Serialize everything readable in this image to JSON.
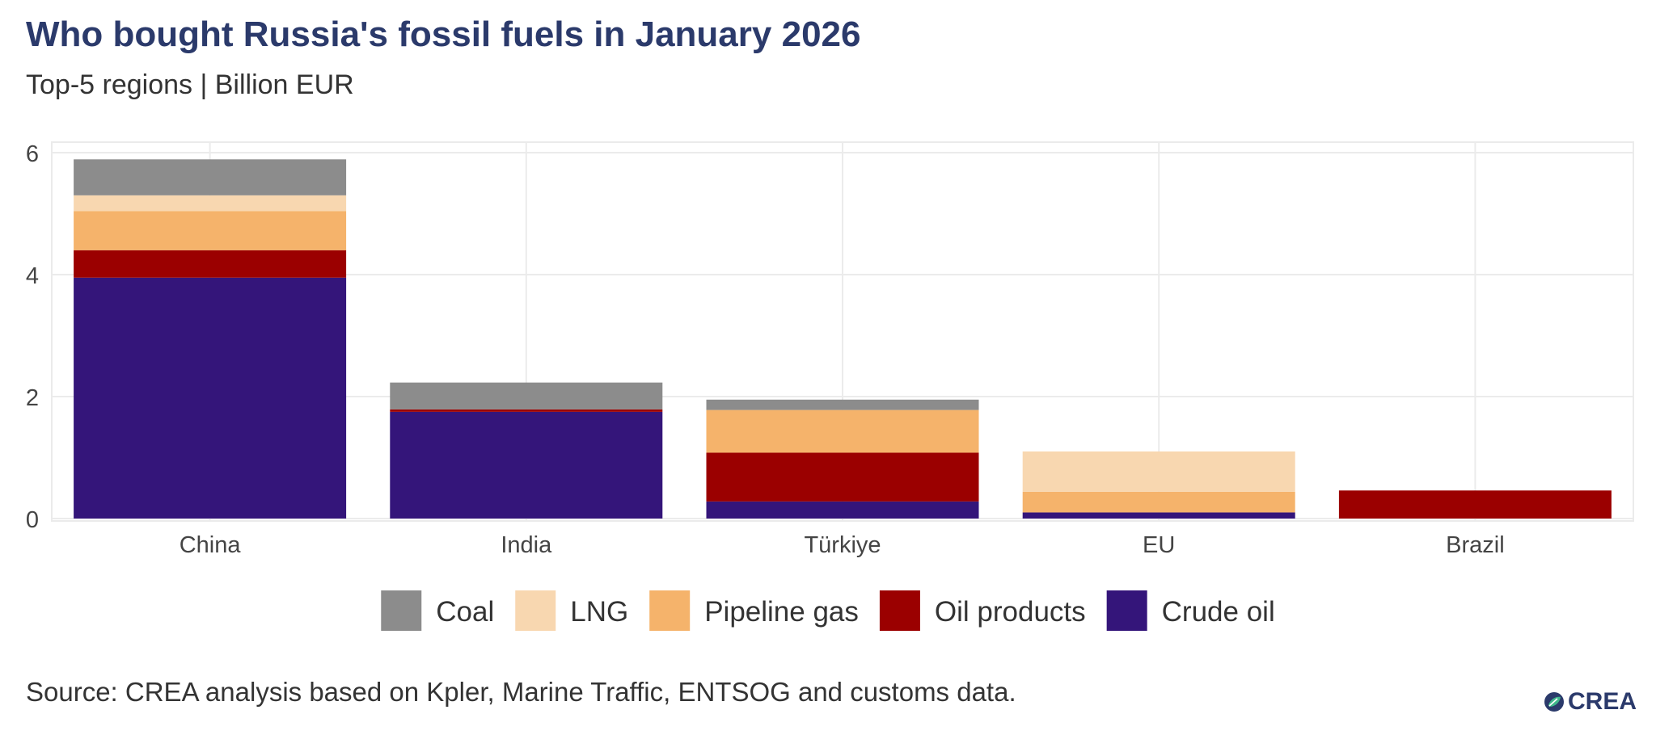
{
  "header": {
    "title": "Who bought Russia's fossil fuels in January 2026",
    "subtitle": "Top-5 regions | Billion EUR"
  },
  "footer": {
    "source": "Source: CREA analysis based on Kpler, Marine Traffic, ENTSOG and customs data.",
    "logo_text": "CREA"
  },
  "chart_data": {
    "type": "bar",
    "stacked": true,
    "title": "Who bought Russia's fossil fuels in January 2026",
    "subtitle": "Top-5 regions | Billion EUR",
    "xlabel": "",
    "ylabel": "",
    "ylim": [
      0,
      6
    ],
    "yticks": [
      0,
      2,
      4,
      6
    ],
    "grid": true,
    "legend_position": "bottom",
    "categories": [
      "China",
      "India",
      "Türkiye",
      "EU",
      "Brazil"
    ],
    "series": [
      {
        "name": "Crude oil",
        "color": "#34157a",
        "values": [
          3.95,
          1.75,
          0.28,
          0.1,
          0.0
        ]
      },
      {
        "name": "Oil products",
        "color": "#9b0000",
        "values": [
          0.45,
          0.04,
          0.8,
          0.0,
          0.46
        ]
      },
      {
        "name": "Pipeline gas",
        "color": "#f5b36b",
        "values": [
          0.64,
          0.0,
          0.7,
          0.34,
          0.0
        ]
      },
      {
        "name": "LNG",
        "color": "#f8d7b0",
        "values": [
          0.26,
          0.0,
          0.0,
          0.66,
          0.0
        ]
      },
      {
        "name": "Coal",
        "color": "#8c8c8c",
        "values": [
          0.59,
          0.44,
          0.17,
          0.0,
          0.0
        ]
      }
    ],
    "legend_order": [
      "Coal",
      "LNG",
      "Pipeline gas",
      "Oil products",
      "Crude oil"
    ]
  }
}
